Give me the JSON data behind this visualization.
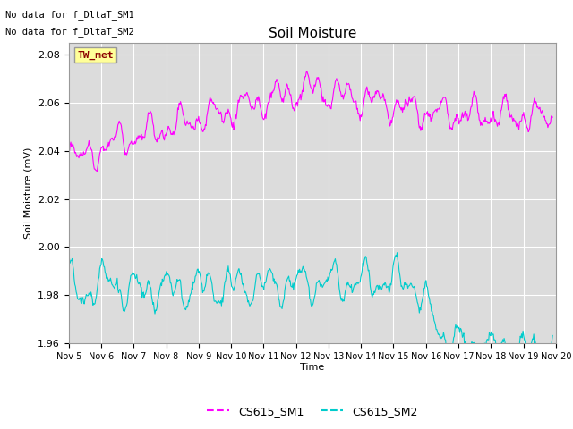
{
  "title": "Soil Moisture",
  "ylabel": "Soil Moisture (mV)",
  "xlabel": "Time",
  "no_data_text1": "No data for f_DltaT_SM1",
  "no_data_text2": "No data for f_DltaT_SM2",
  "tw_met_label": "TW_met",
  "legend_labels": [
    "CS615_SM1",
    "CS615_SM2"
  ],
  "color_sm1": "#FF00FF",
  "color_sm2": "#00CCCC",
  "ylim": [
    1.96,
    2.085
  ],
  "yticks": [
    1.96,
    1.98,
    2.0,
    2.02,
    2.04,
    2.06,
    2.08
  ],
  "xlim_days": [
    5,
    20
  ],
  "xtick_labels": [
    "Nov 5",
    "Nov 6",
    "Nov 7",
    "Nov 8",
    "Nov 9",
    "Nov 10",
    "Nov 11",
    "Nov 12",
    "Nov 13",
    "Nov 14",
    "Nov 15",
    "Nov 16",
    "Nov 17",
    "Nov 18",
    "Nov 19",
    "Nov 20"
  ],
  "background_color": "#DCDCDC",
  "fig_background": "#FFFFFF",
  "grid_color": "#FFFFFF",
  "title_fontsize": 11,
  "axis_fontsize": 8,
  "tick_fontsize": 8,
  "legend_fontsize": 9
}
